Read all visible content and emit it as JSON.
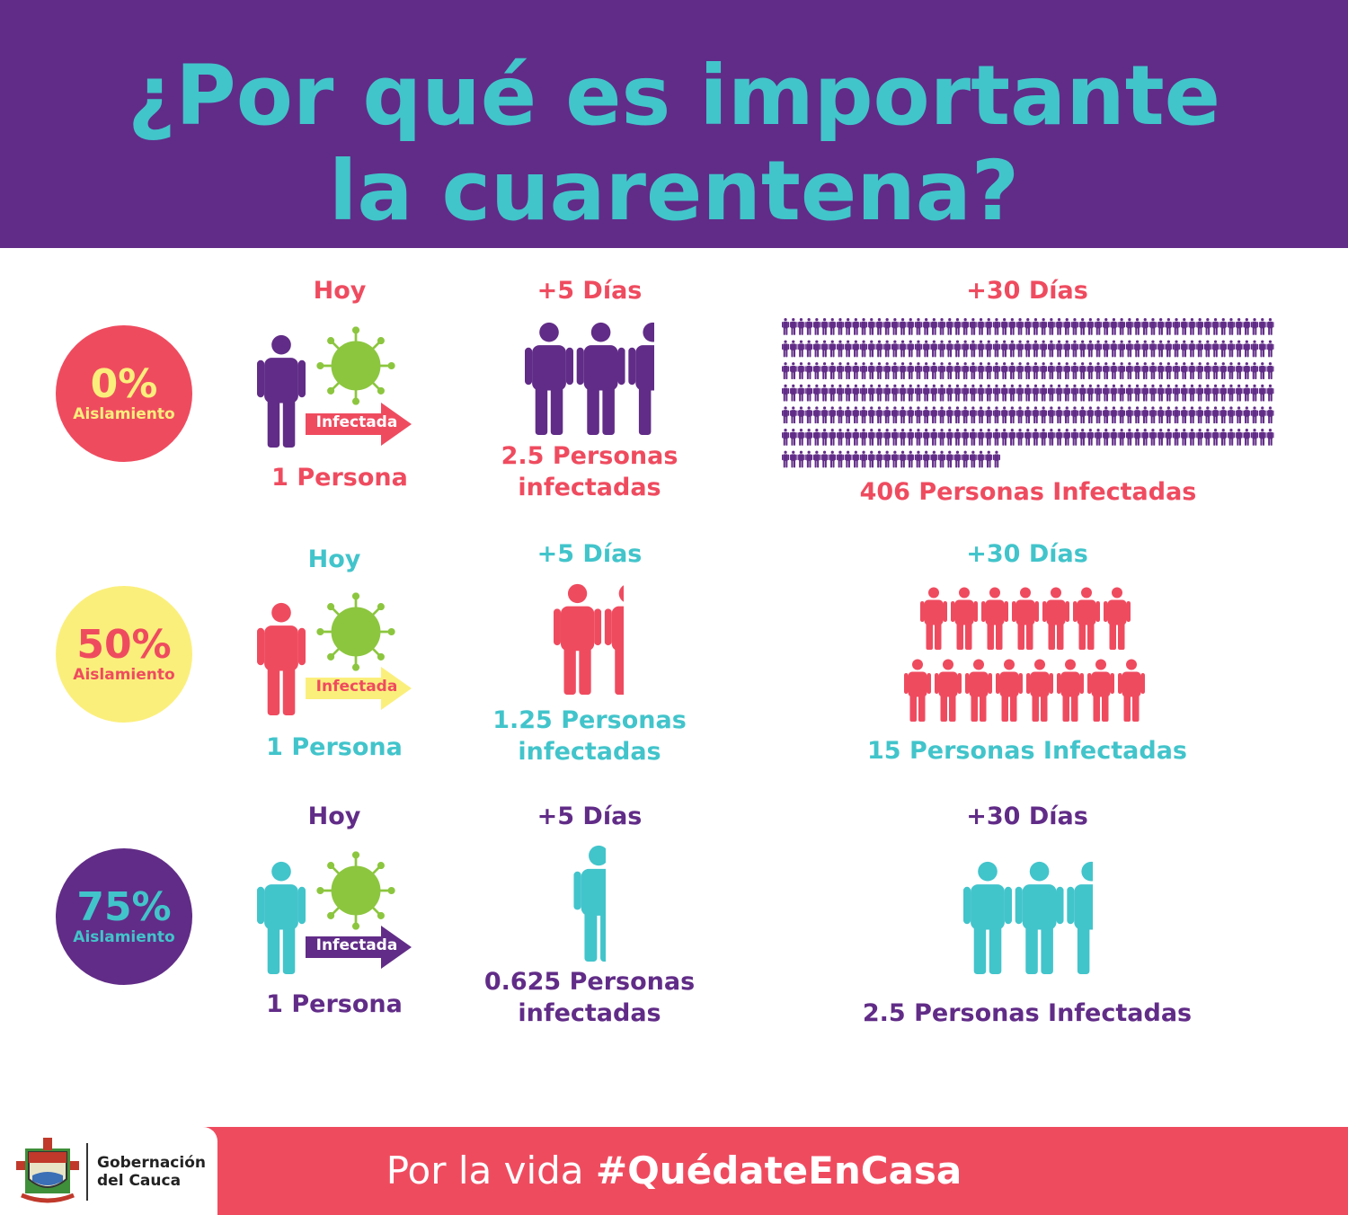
{
  "header": {
    "title_line1": "¿Por qué es importante",
    "title_line2": "la cuarentena?"
  },
  "colors": {
    "purple": "#612c87",
    "teal": "#42c4cb",
    "coral": "#ef4b5f",
    "yellow": "#fbef7c",
    "green": "#8cc63f"
  },
  "rows": [
    {
      "isolation_pct": "0%",
      "isolation_label": "Aislamiento",
      "today_label": "Hoy",
      "arrow_label": "Infectada",
      "today_count": "1 Persona",
      "day5_label": "+5 Días",
      "day5_line1": "2.5 Personas",
      "day5_line2": "infectadas",
      "day5_people": 2.5,
      "day30_label": "+30 Días",
      "day30_text": "406 Personas Infectadas",
      "day30_people": 406
    },
    {
      "isolation_pct": "50%",
      "isolation_label": "Aislamiento",
      "today_label": "Hoy",
      "arrow_label": "Infectada",
      "today_count": "1 Persona",
      "day5_label": "+5 Días",
      "day5_line1": "1.25 Personas",
      "day5_line2": "infectadas",
      "day5_people": 1.25,
      "day30_label": "+30 Días",
      "day30_text": "15 Personas Infectadas",
      "day30_people": 15
    },
    {
      "isolation_pct": "75%",
      "isolation_label": "Aislamiento",
      "today_label": "Hoy",
      "arrow_label": "Infectada",
      "today_count": "1 Persona",
      "day5_label": "+5 Días",
      "day5_line1": "0.625 Personas",
      "day5_line2": "infectadas",
      "day5_people": 0.625,
      "day30_label": "+30 Días",
      "day30_text": "2.5 Personas Infectadas",
      "day30_people": 2.5
    }
  ],
  "footer": {
    "org_line1": "Gobernación",
    "org_line2": "del Cauca",
    "slogan_prefix": "Por la vida ",
    "slogan_hashtag": "#QuédateEnCasa",
    "logo_icon": "coat-of-arms-icon"
  }
}
